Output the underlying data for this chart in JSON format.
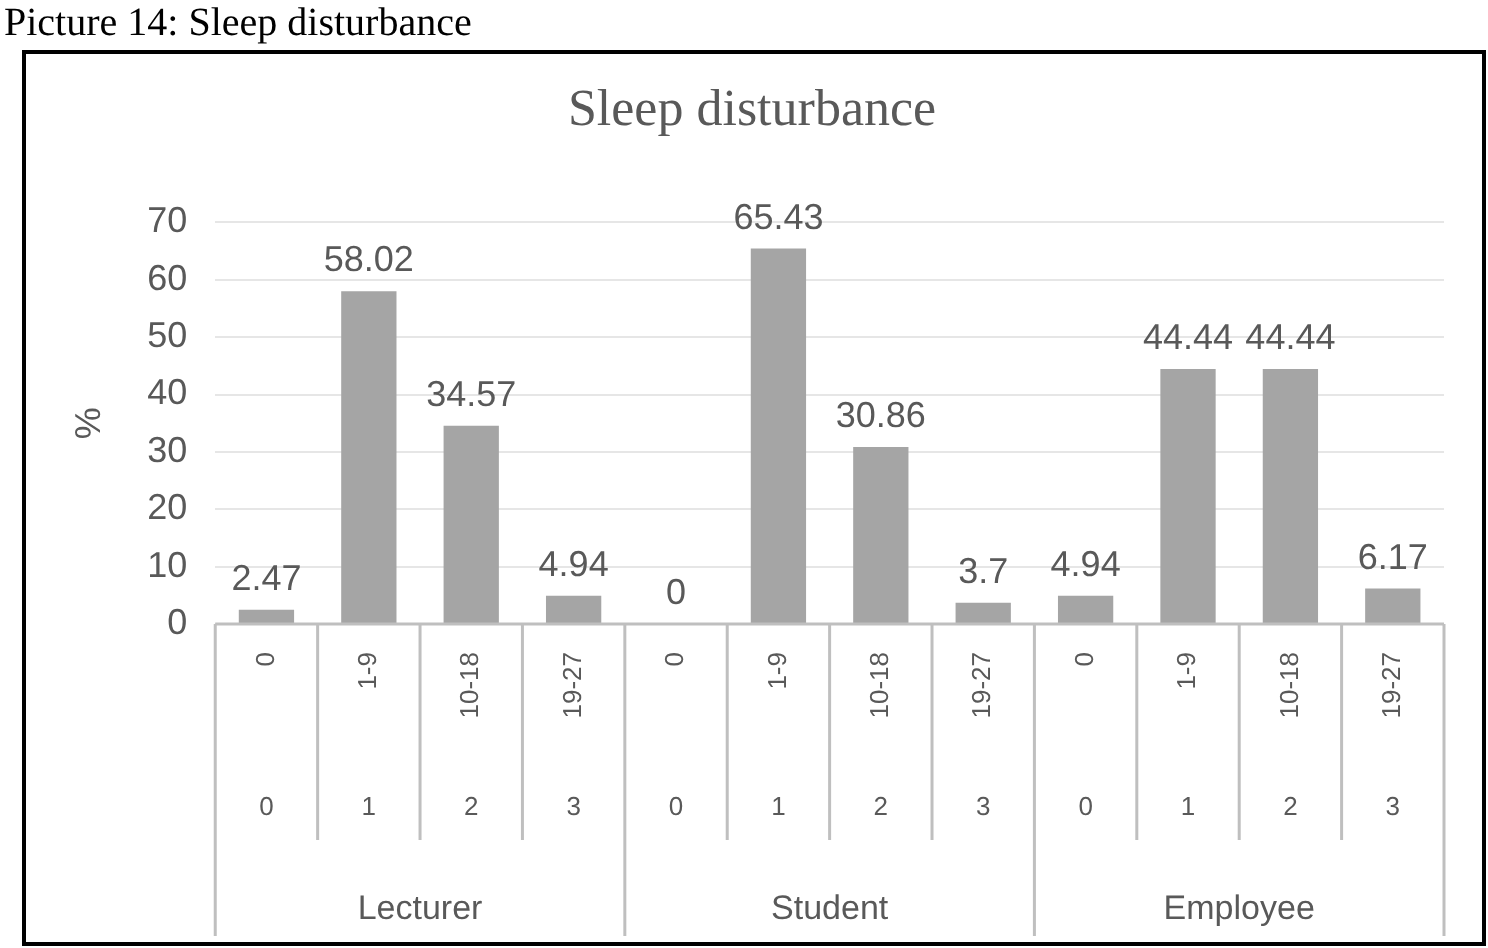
{
  "chart_data": {
    "type": "bar",
    "title": "Sleep disturbance",
    "ylabel": "%",
    "categories": [
      "0",
      "1-9",
      "10-18",
      "19-27",
      "0",
      "1-9",
      "10-18",
      "19-27",
      "0",
      "1-9",
      "10-18",
      "19-27"
    ],
    "values": [
      2.47,
      58.02,
      34.57,
      4.94,
      0,
      65.43,
      30.86,
      3.7,
      4.94,
      44.44,
      44.44,
      6.17
    ],
    "color": "#a5a5a5",
    "data_labels": true,
    "ylim": [
      0,
      70
    ],
    "yticks": [
      0,
      10,
      20,
      30,
      40,
      50,
      60,
      70
    ],
    "grid": "y",
    "legend": false,
    "annotations": [
      "Picture 14: Sleep disturbance",
      "0",
      "1",
      "2",
      "3",
      "0",
      "1",
      "2",
      "3",
      "0",
      "1",
      "2",
      "3",
      "Lecturer",
      "Student",
      "Employee"
    ]
  }
}
